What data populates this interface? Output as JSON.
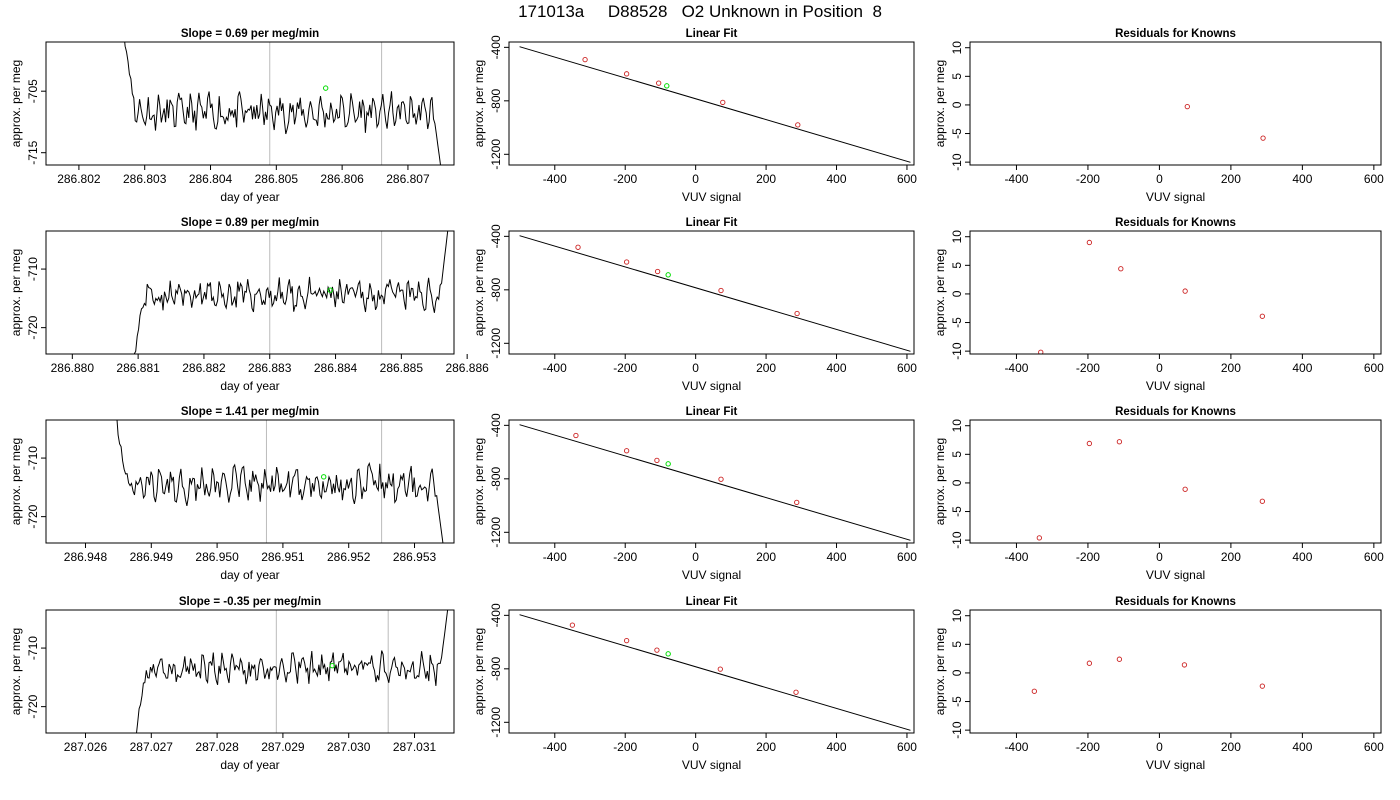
{
  "title": "171013a     D88528   O2 Unknown in Position  8",
  "chart_data": [
    {
      "id": "r1-trace",
      "type": "line",
      "title": "Slope =  0.69  per meg/min",
      "xlabel": "day of year",
      "ylabel": "approx. per meg",
      "xlim": [
        286.8015,
        286.8077
      ],
      "ylim": [
        -717,
        -697
      ],
      "xticks": [
        286.802,
        286.803,
        286.804,
        286.805,
        286.806,
        286.807
      ],
      "xtick_labels": [
        "286.802",
        "286.803",
        "286.804",
        "286.805",
        "286.806",
        "286.807"
      ],
      "yticks": [
        -715,
        -705
      ],
      "ytick_labels": [
        "-715",
        "-705"
      ],
      "vlines": [
        286.8049,
        286.8066
      ],
      "line_color": "#000000",
      "vline_color": "#bbbbbb",
      "x_start": 286.80268,
      "x_end": 286.80752,
      "baseline": -708.5,
      "noise": 2.2,
      "seed": 11,
      "start_y": -695,
      "end_y": -719,
      "highlight": {
        "x": 286.80575,
        "y": -704.5,
        "color": "#00dd00"
      }
    },
    {
      "id": "r1-fit",
      "type": "scatter",
      "title": "Linear Fit",
      "xlabel": "VUV signal",
      "ylabel": "approx. per meg",
      "xlim": [
        -530,
        620
      ],
      "ylim": [
        -1280,
        -360
      ],
      "xticks": [
        -400,
        -200,
        0,
        200,
        400,
        600
      ],
      "xtick_labels": [
        "-400",
        "-200",
        "0",
        "200",
        "400",
        "600"
      ],
      "yticks": [
        -1200,
        -800,
        -400
      ],
      "ytick_labels": [
        "-1200",
        "-800",
        "-400"
      ],
      "fit_line": {
        "x": [
          -500,
          610
        ],
        "y": [
          -395,
          -1260
        ]
      },
      "points": [
        {
          "x": -314,
          "y": -492
        },
        {
          "x": -196,
          "y": -598
        },
        {
          "x": -105,
          "y": -668
        },
        {
          "x": 77,
          "y": -812
        },
        {
          "x": 290,
          "y": -980
        }
      ],
      "highlight": {
        "x": -82,
        "y": -688,
        "color": "#00dd00"
      },
      "point_color": "#cc2222"
    },
    {
      "id": "r1-resid",
      "type": "scatter",
      "title": "Residuals for Knowns",
      "xlabel": "VUV signal",
      "ylabel": "approx. per meg",
      "xlim": [
        -530,
        620
      ],
      "ylim": [
        -10.5,
        11
      ],
      "xticks": [
        -400,
        -200,
        0,
        200,
        400,
        600
      ],
      "xtick_labels": [
        "-400",
        "-200",
        "0",
        "200",
        "400",
        "600"
      ],
      "yticks": [
        -10,
        -5,
        0,
        5,
        10
      ],
      "ytick_labels": [
        "-10",
        "-5",
        "0",
        "5",
        "10"
      ],
      "points": [
        {
          "x": 78,
          "y": -0.3
        },
        {
          "x": 290,
          "y": -5.8
        }
      ],
      "point_color": "#cc2222"
    },
    {
      "id": "r2-trace",
      "type": "line",
      "title": "Slope =  0.89  per meg/min",
      "xlabel": "day of year",
      "ylabel": "approx. per meg",
      "xlim": [
        286.8796,
        286.8858
      ],
      "ylim": [
        -724.5,
        -703.5
      ],
      "xticks": [
        286.88,
        286.881,
        286.882,
        286.883,
        286.884,
        286.885,
        286.886
      ],
      "xtick_labels": [
        "286.880",
        "286.881",
        "286.882",
        "286.883",
        "286.884",
        "286.885",
        "286.886"
      ],
      "yticks": [
        -720,
        -710
      ],
      "ytick_labels": [
        "-720",
        "-710"
      ],
      "vlines": [
        286.883,
        286.8847
      ],
      "line_color": "#000000",
      "vline_color": "#bbbbbb",
      "x_start": 286.88092,
      "x_end": 286.88572,
      "baseline": -714.5,
      "noise": 2.0,
      "seed": 23,
      "start_y": -726,
      "end_y": -702,
      "highlight": {
        "x": 286.88392,
        "y": -713.6,
        "color": "#00dd00"
      }
    },
    {
      "id": "r2-fit",
      "type": "scatter",
      "title": "Linear Fit",
      "xlabel": "VUV signal",
      "ylabel": "approx. per meg",
      "xlim": [
        -530,
        620
      ],
      "ylim": [
        -1280,
        -360
      ],
      "xticks": [
        -400,
        -200,
        0,
        200,
        400,
        600
      ],
      "xtick_labels": [
        "-400",
        "-200",
        "0",
        "200",
        "400",
        "600"
      ],
      "yticks": [
        -1200,
        -800,
        -400
      ],
      "ytick_labels": [
        "-1200",
        "-800",
        "-400"
      ],
      "fit_line": {
        "x": [
          -500,
          610
        ],
        "y": [
          -395,
          -1260
        ]
      },
      "points": [
        {
          "x": -334,
          "y": -482
        },
        {
          "x": -196,
          "y": -592
        },
        {
          "x": -108,
          "y": -663
        },
        {
          "x": 72,
          "y": -805
        },
        {
          "x": 288,
          "y": -977
        }
      ],
      "highlight": {
        "x": -78,
        "y": -688,
        "color": "#00dd00"
      },
      "point_color": "#cc2222"
    },
    {
      "id": "r2-resid",
      "type": "scatter",
      "title": "Residuals for Knowns",
      "xlabel": "VUV signal",
      "ylabel": "approx. per meg",
      "xlim": [
        -530,
        620
      ],
      "ylim": [
        -10.5,
        11
      ],
      "xticks": [
        -400,
        -200,
        0,
        200,
        400,
        600
      ],
      "xtick_labels": [
        "-400",
        "-200",
        "0",
        "200",
        "400",
        "600"
      ],
      "yticks": [
        -10,
        -5,
        0,
        5,
        10
      ],
      "ytick_labels": [
        "-10",
        "-5",
        "0",
        "5",
        "10"
      ],
      "points": [
        {
          "x": -332,
          "y": -10.2
        },
        {
          "x": -196,
          "y": 9.0
        },
        {
          "x": -108,
          "y": 4.4
        },
        {
          "x": 72,
          "y": 0.5
        },
        {
          "x": 288,
          "y": -3.9
        }
      ],
      "point_color": "#cc2222"
    },
    {
      "id": "r3-trace",
      "type": "line",
      "title": "Slope =  1.41  per meg/min",
      "xlabel": "day of year",
      "ylabel": "approx. per meg",
      "xlim": [
        286.9474,
        286.9536
      ],
      "ylim": [
        -724.5,
        -703.5
      ],
      "xticks": [
        286.948,
        286.949,
        286.95,
        286.951,
        286.952,
        286.953
      ],
      "xtick_labels": [
        "286.948",
        "286.949",
        "286.950",
        "286.951",
        "286.952",
        "286.953"
      ],
      "yticks": [
        -720,
        -710
      ],
      "ytick_labels": [
        "-720",
        "-710"
      ],
      "vlines": [
        286.95075,
        286.9525
      ],
      "line_color": "#000000",
      "vline_color": "#bbbbbb",
      "x_start": 286.94845,
      "x_end": 286.95345,
      "baseline": -714.5,
      "noise": 2.3,
      "seed": 37,
      "start_y": -702,
      "end_y": -726,
      "highlight": {
        "x": 286.95162,
        "y": -713.2,
        "color": "#00dd00"
      }
    },
    {
      "id": "r3-fit",
      "type": "scatter",
      "title": "Linear Fit",
      "xlabel": "VUV signal",
      "ylabel": "approx. per meg",
      "xlim": [
        -530,
        620
      ],
      "ylim": [
        -1280,
        -360
      ],
      "xticks": [
        -400,
        -200,
        0,
        200,
        400,
        600
      ],
      "xtick_labels": [
        "-400",
        "-200",
        "0",
        "200",
        "400",
        "600"
      ],
      "yticks": [
        -1200,
        -800,
        -400
      ],
      "ytick_labels": [
        "-1200",
        "-800",
        "-400"
      ],
      "fit_line": {
        "x": [
          -500,
          610
        ],
        "y": [
          -395,
          -1260
        ]
      },
      "points": [
        {
          "x": -340,
          "y": -476
        },
        {
          "x": -196,
          "y": -590
        },
        {
          "x": -110,
          "y": -662
        },
        {
          "x": 72,
          "y": -803
        },
        {
          "x": 287,
          "y": -976
        }
      ],
      "highlight": {
        "x": -78,
        "y": -688,
        "color": "#00dd00"
      },
      "point_color": "#cc2222"
    },
    {
      "id": "r3-resid",
      "type": "scatter",
      "title": "Residuals for Knowns",
      "xlabel": "VUV signal",
      "ylabel": "approx. per meg",
      "xlim": [
        -530,
        620
      ],
      "ylim": [
        -10.5,
        11
      ],
      "xticks": [
        -400,
        -200,
        0,
        200,
        400,
        600
      ],
      "xtick_labels": [
        "-400",
        "-200",
        "0",
        "200",
        "400",
        "600"
      ],
      "yticks": [
        -10,
        -5,
        0,
        5,
        10
      ],
      "ytick_labels": [
        "-10",
        "-5",
        "0",
        "5",
        "10"
      ],
      "points": [
        {
          "x": -336,
          "y": -9.6
        },
        {
          "x": -196,
          "y": 6.9
        },
        {
          "x": -112,
          "y": 7.2
        },
        {
          "x": 72,
          "y": -1.1
        },
        {
          "x": 288,
          "y": -3.2
        }
      ],
      "point_color": "#cc2222"
    },
    {
      "id": "r4-trace",
      "type": "line",
      "title": "Slope =  -0.35  per meg/min",
      "xlabel": "day of year",
      "ylabel": "approx. per meg",
      "xlim": [
        287.0254,
        287.0316
      ],
      "ylim": [
        -724.5,
        -703.5
      ],
      "xticks": [
        287.026,
        287.027,
        287.028,
        287.029,
        287.03,
        287.031
      ],
      "xtick_labels": [
        "287.026",
        "287.027",
        "287.028",
        "287.029",
        "287.030",
        "287.031"
      ],
      "yticks": [
        -720,
        -710
      ],
      "ytick_labels": [
        "-720",
        "-710"
      ],
      "vlines": [
        287.0289,
        287.0306
      ],
      "line_color": "#000000",
      "vline_color": "#bbbbbb",
      "x_start": 287.02675,
      "x_end": 287.03152,
      "baseline": -713.5,
      "noise": 2.0,
      "seed": 53,
      "start_y": -726,
      "end_y": -702,
      "highlight": {
        "x": 287.02975,
        "y": -713.0,
        "color": "#00dd00"
      }
    },
    {
      "id": "r4-fit",
      "type": "scatter",
      "title": "Linear Fit",
      "xlabel": "VUV signal",
      "ylabel": "approx. per meg",
      "xlim": [
        -530,
        620
      ],
      "ylim": [
        -1280,
        -360
      ],
      "xticks": [
        -400,
        -200,
        0,
        200,
        400,
        600
      ],
      "xtick_labels": [
        "-400",
        "-200",
        "0",
        "200",
        "400",
        "600"
      ],
      "yticks": [
        -1200,
        -800,
        -400
      ],
      "ytick_labels": [
        "-1200",
        "-800",
        "-400"
      ],
      "fit_line": {
        "x": [
          -500,
          610
        ],
        "y": [
          -395,
          -1260
        ]
      },
      "points": [
        {
          "x": -350,
          "y": -473
        },
        {
          "x": -196,
          "y": -589
        },
        {
          "x": -110,
          "y": -660
        },
        {
          "x": 70,
          "y": -802
        },
        {
          "x": 285,
          "y": -975
        }
      ],
      "highlight": {
        "x": -78,
        "y": -688,
        "color": "#00dd00"
      },
      "point_color": "#cc2222"
    },
    {
      "id": "r4-resid",
      "type": "scatter",
      "title": "Residuals for Knowns",
      "xlabel": "VUV signal",
      "ylabel": "approx. per meg",
      "xlim": [
        -530,
        620
      ],
      "ylim": [
        -10.5,
        11
      ],
      "xticks": [
        -400,
        -200,
        0,
        200,
        400,
        600
      ],
      "xtick_labels": [
        "-400",
        "-200",
        "0",
        "200",
        "400",
        "600"
      ],
      "yticks": [
        -10,
        -5,
        0,
        5,
        10
      ],
      "ytick_labels": [
        "-10",
        "-5",
        "0",
        "5",
        "10"
      ],
      "points": [
        {
          "x": -350,
          "y": -3.2
        },
        {
          "x": -196,
          "y": 1.7
        },
        {
          "x": -112,
          "y": 2.4
        },
        {
          "x": 70,
          "y": 1.4
        },
        {
          "x": 288,
          "y": -2.3
        }
      ],
      "point_color": "#cc2222"
    }
  ]
}
